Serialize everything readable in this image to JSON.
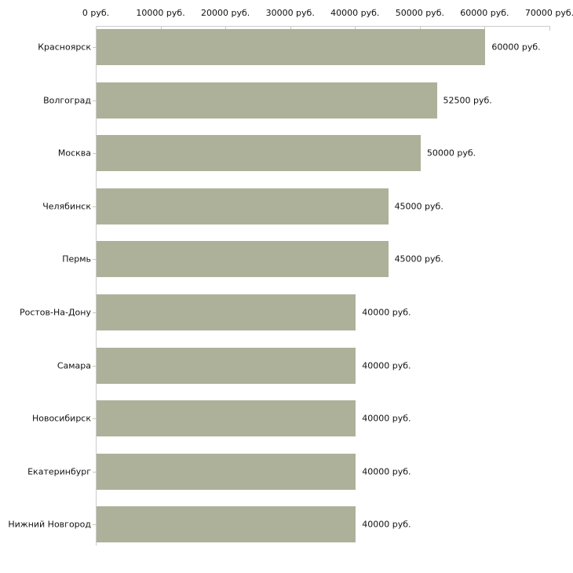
{
  "chart_data": {
    "type": "bar",
    "orientation": "horizontal",
    "title": "",
    "xlabel": "",
    "ylabel": "",
    "unit": "руб.",
    "categories": [
      "Красноярск",
      "Волгоград",
      "Москва",
      "Челябинск",
      "Пермь",
      "Ростов-На-Дону",
      "Самара",
      "Новосибирск",
      "Екатеринбург",
      "Нижний Новгород"
    ],
    "values": [
      60000,
      52500,
      50000,
      45000,
      45000,
      40000,
      40000,
      40000,
      40000,
      40000
    ],
    "value_labels": [
      "60000 руб.",
      "52500 руб.",
      "50000 руб.",
      "45000 руб.",
      "45000 руб.",
      "40000 руб.",
      "40000 руб.",
      "40000 руб.",
      "40000 руб.",
      "40000 руб."
    ],
    "x_ticks": [
      0,
      10000,
      20000,
      30000,
      40000,
      50000,
      60000,
      70000
    ],
    "x_tick_labels": [
      "0 руб.",
      "10000 руб.",
      "20000 руб.",
      "30000 руб.",
      "40000 руб.",
      "50000 руб.",
      "60000 руб.",
      "70000 руб."
    ],
    "xlim": [
      0,
      70000
    ],
    "grid": false,
    "legend": null,
    "colors": {
      "bar": "#adb199",
      "axis": "#cccccc",
      "tick": "#c9cba4",
      "text": "#111111",
      "background": "#ffffff"
    }
  }
}
